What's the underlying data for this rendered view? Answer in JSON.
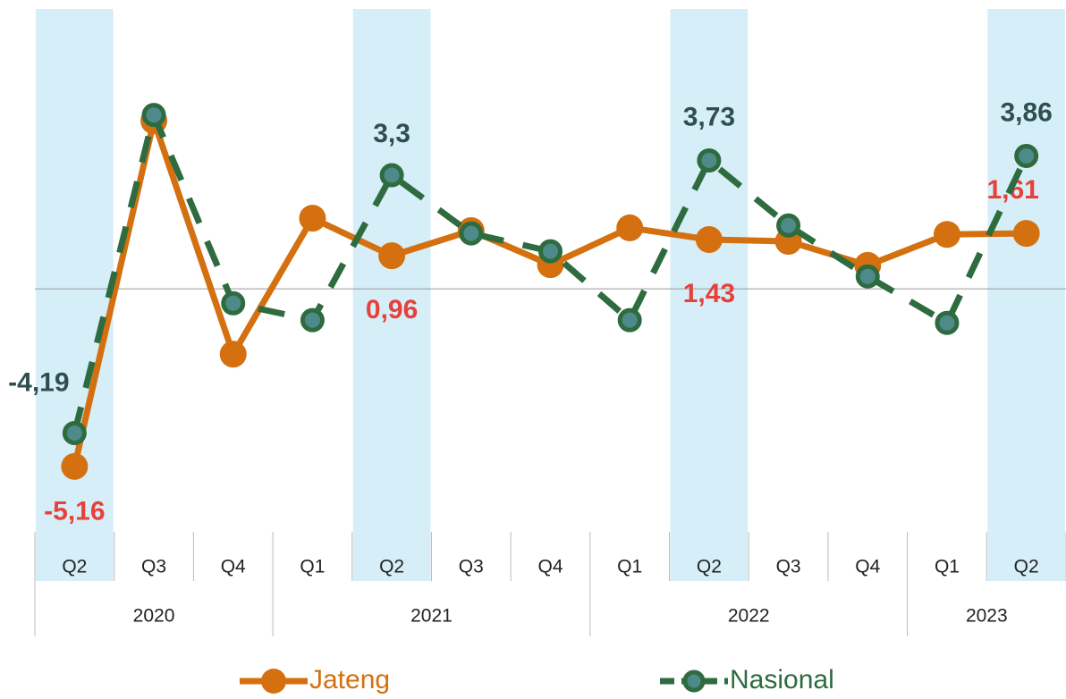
{
  "chart_data": {
    "type": "line",
    "categories": [
      "Q2",
      "Q3",
      "Q4",
      "Q1",
      "Q2",
      "Q3",
      "Q4",
      "Q1",
      "Q2",
      "Q3",
      "Q4",
      "Q1",
      "Q2"
    ],
    "x_groups": [
      {
        "label": "2020",
        "span": 3
      },
      {
        "label": "2021",
        "span": 4
      },
      {
        "label": "2022",
        "span": 4
      },
      {
        "label": "2023",
        "span": 2
      }
    ],
    "highlight": [
      0,
      4,
      8,
      12
    ],
    "highlight_color": "#d6eef8",
    "ylim": [
      -7.06,
      8.13
    ],
    "series": [
      {
        "name": "Jateng",
        "color": "#d4700f",
        "label_color": "#e8403a",
        "dashed": false,
        "values": [
          -5.16,
          4.88,
          -1.9,
          2.05,
          0.96,
          1.69,
          0.7,
          1.77,
          1.43,
          1.38,
          0.68,
          1.58,
          1.61
        ],
        "value_labels": [
          "-5,16",
          null,
          null,
          null,
          "0,96",
          null,
          null,
          null,
          "1,43",
          null,
          null,
          null,
          "1,61"
        ]
      },
      {
        "name": "Nasional",
        "color": "#2e6b3f",
        "label_color": "#2f4f4f",
        "dashed": true,
        "values": [
          -4.19,
          5.05,
          -0.42,
          -0.91,
          3.3,
          1.61,
          1.09,
          -0.91,
          3.73,
          1.84,
          0.36,
          -0.99,
          3.86
        ],
        "value_labels": [
          "-4,19",
          null,
          null,
          null,
          "3,3",
          null,
          null,
          null,
          "3,73",
          null,
          null,
          null,
          "3,86"
        ]
      }
    ]
  }
}
